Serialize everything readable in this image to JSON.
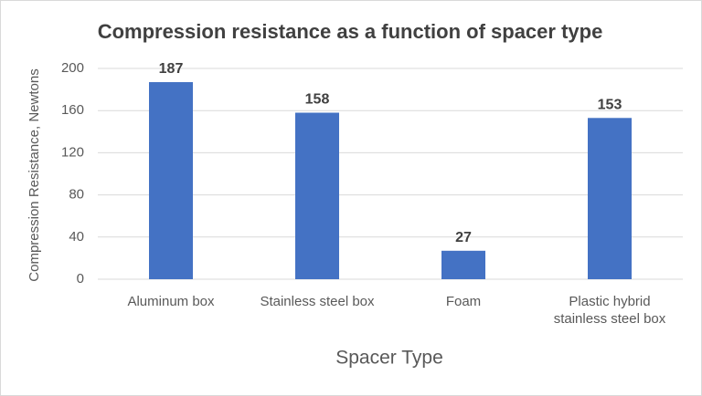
{
  "chart_data": {
    "type": "bar",
    "title": "Compression resistance as a function of spacer type",
    "x_label": "Spacer Type",
    "y_label": "Compression Resistance, Newtons",
    "categories": [
      "Aluminum box",
      "Stainless steel box",
      "Foam",
      "Plastic hybrid stainless steel box"
    ],
    "values": [
      187,
      158,
      27,
      153
    ],
    "color": "#4472c4",
    "ylim": [
      0,
      200
    ],
    "yticks": [
      0,
      40,
      80,
      120,
      160,
      200
    ],
    "grid": true
  }
}
